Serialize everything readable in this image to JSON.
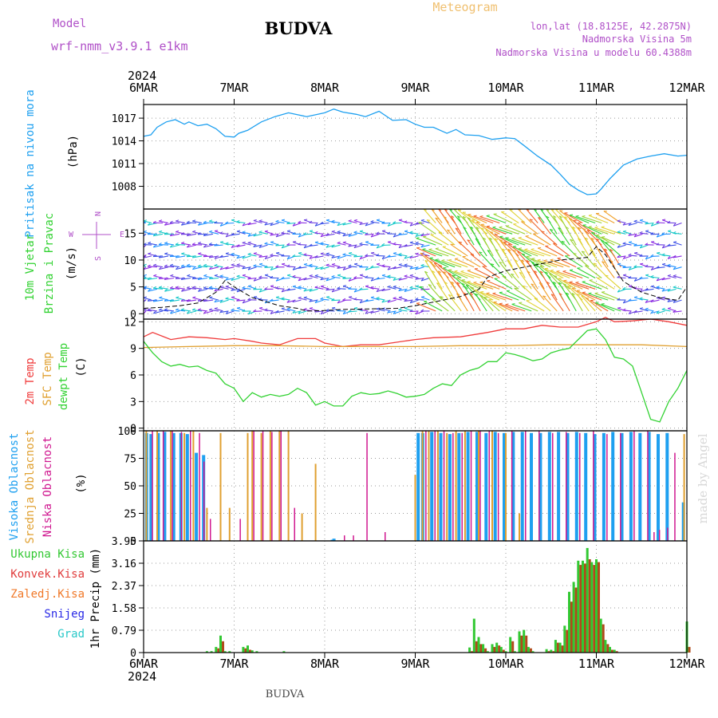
{
  "header": {
    "title": "BUDVA",
    "subtitle": "Meteogram",
    "model_label": "Model",
    "model_value": "wrf-nmm_v3.9.1 e1km",
    "location_line": "lon,lat (18.8125E, 42.2875N)",
    "elevation_line": "Nadmorska Visina 5m",
    "model_elevation_line": "Nadmorska Visina u modelu 60.4388m",
    "year_top": "2024",
    "year_bottom": "2024",
    "footer_title": "BUDVA",
    "watermark": "made by Angel"
  },
  "colors": {
    "pressure": "#1ea0f0",
    "temp2m": "#f03c3c",
    "sfc": "#e0a030",
    "dewpt": "#32d232",
    "high_cloud": "#1ea0f0",
    "mid_cloud": "#e0a030",
    "low_cloud": "#d01890",
    "precip_total": "#32c832",
    "precip_conv": "#e03c3c",
    "precip_frozen": "#f07828",
    "precip_snow": "#2828e6",
    "precip_hail": "#28c8c8",
    "wind_speed": "#000000"
  },
  "chart_data": [
    {
      "id": "pressure",
      "type": "line",
      "side_label": "Pritisak na nivou mora",
      "ylabel": "(hPa)",
      "ylim": [
        1005,
        1018.8
      ],
      "yticks": [
        1008,
        1011,
        1014,
        1017
      ],
      "x_days": [
        0,
        0.08,
        0.15,
        0.25,
        0.35,
        0.45,
        0.5,
        0.6,
        0.7,
        0.8,
        0.9,
        1.0,
        1.05,
        1.15,
        1.3,
        1.45,
        1.6,
        1.8,
        2.0,
        2.1,
        2.2,
        2.35,
        2.45,
        2.6,
        2.75,
        2.9,
        3.0,
        3.1,
        3.2,
        3.35,
        3.45,
        3.55,
        3.7,
        3.85,
        4.0,
        4.1,
        4.2,
        4.35,
        4.5,
        4.6,
        4.7,
        4.8,
        4.9,
        5.0,
        5.05,
        5.15,
        5.3,
        5.45,
        5.6,
        5.75,
        5.9,
        6.0
      ],
      "y_values": [
        1014.6,
        1014.8,
        1015.8,
        1016.5,
        1016.8,
        1016.2,
        1016.5,
        1016.0,
        1016.2,
        1015.6,
        1014.6,
        1014.5,
        1015.0,
        1015.4,
        1016.5,
        1017.2,
        1017.7,
        1017.2,
        1017.7,
        1018.2,
        1017.8,
        1017.5,
        1017.2,
        1017.9,
        1016.7,
        1016.8,
        1016.2,
        1015.8,
        1015.8,
        1015.0,
        1015.5,
        1014.8,
        1014.7,
        1014.2,
        1014.4,
        1014.3,
        1013.4,
        1012.0,
        1010.8,
        1009.6,
        1008.3,
        1007.5,
        1006.9,
        1007.0,
        1007.6,
        1009.0,
        1010.8,
        1011.6,
        1012.0,
        1012.3,
        1012.0,
        1012.1
      ],
      "xlim_days": [
        0,
        6
      ]
    },
    {
      "id": "wind",
      "type": "wind-barbs",
      "side_label_1": "10m Vjetar",
      "side_label_2": "Brzina i Pravac",
      "ylabel": "(m/s)",
      "compass_n": "N",
      "compass_w": "W",
      "compass_e": "E",
      "compass_s": "S",
      "ylim": [
        -1,
        19.5
      ],
      "yticks": [
        0,
        5,
        10,
        15
      ],
      "speed_x_days": [
        0,
        0.2,
        0.4,
        0.6,
        0.8,
        0.9,
        1.0,
        1.2,
        1.5,
        1.7,
        1.8,
        2.0,
        2.2,
        2.5,
        2.8,
        3.0,
        3.3,
        3.5,
        3.7,
        3.8,
        4.0,
        4.3,
        4.6,
        4.9,
        5.0,
        5.1,
        5.2,
        5.3,
        5.5,
        5.7,
        5.9,
        6.0
      ],
      "speed_values": [
        1.0,
        1.2,
        1.5,
        2.0,
        4.0,
        6.2,
        5.0,
        3.0,
        1.5,
        1.0,
        0.5,
        0.6,
        0.8,
        0.9,
        1.0,
        1.5,
        2.5,
        3.2,
        4.5,
        6.8,
        8.0,
        9.0,
        10.0,
        10.5,
        12.5,
        11.0,
        8.5,
        6.0,
        4.0,
        3.0,
        2.5,
        5.0
      ],
      "segments": [
        {
          "from": 0,
          "to": 0.85,
          "regime": "westerly-calm"
        },
        {
          "from": 0.85,
          "to": 3.2,
          "regime": "variable-light"
        },
        {
          "from": 3.2,
          "to": 5.3,
          "regime": "southeasterly-strong"
        },
        {
          "from": 5.3,
          "to": 6.0,
          "regime": "variable-light"
        }
      ],
      "xlim_days": [
        0,
        6
      ]
    },
    {
      "id": "temperature",
      "type": "line",
      "side_label_2m": "2m Temp",
      "side_label_sfc": "SFC Temp",
      "side_label_dew": "dewpt Temp",
      "ylabel": "(C)",
      "ylim": [
        -0.3,
        12.3
      ],
      "yticks": [
        0,
        3,
        6,
        9,
        12
      ],
      "series": [
        {
          "name": "2m Temp",
          "color_key": "temp2m",
          "x": [
            0,
            0.1,
            0.2,
            0.3,
            0.5,
            0.7,
            0.9,
            1.0,
            1.2,
            1.3,
            1.5,
            1.7,
            1.9,
            2.0,
            2.2,
            2.4,
            2.6,
            2.8,
            3.0,
            3.2,
            3.5,
            3.8,
            4.0,
            4.2,
            4.4,
            4.6,
            4.8,
            5.0,
            5.1,
            5.2,
            5.4,
            5.6,
            5.8,
            6.0
          ],
          "y": [
            10.3,
            10.8,
            10.4,
            10.0,
            10.3,
            10.2,
            10.0,
            10.1,
            9.8,
            9.6,
            9.4,
            10.1,
            10.1,
            9.6,
            9.2,
            9.4,
            9.4,
            9.7,
            10.0,
            10.2,
            10.3,
            10.8,
            11.2,
            11.2,
            11.6,
            11.4,
            11.4,
            12.0,
            12.5,
            12.0,
            12.1,
            12.3,
            12.0,
            11.6
          ]
        },
        {
          "name": "SFC Temp",
          "color_key": "sfc",
          "x": [
            0,
            0.5,
            1.0,
            1.5,
            2.0,
            2.5,
            3.0,
            3.5,
            4.0,
            4.5,
            5.0,
            5.5,
            6.0
          ],
          "y": [
            9.1,
            9.2,
            9.3,
            9.3,
            9.2,
            9.2,
            9.2,
            9.3,
            9.3,
            9.4,
            9.4,
            9.4,
            9.2
          ]
        },
        {
          "name": "dewpt Temp",
          "color_key": "dewpt",
          "x": [
            0,
            0.1,
            0.2,
            0.3,
            0.4,
            0.5,
            0.6,
            0.7,
            0.8,
            0.9,
            1.0,
            1.1,
            1.2,
            1.3,
            1.4,
            1.5,
            1.6,
            1.7,
            1.8,
            1.9,
            2.0,
            2.1,
            2.2,
            2.3,
            2.4,
            2.5,
            2.6,
            2.7,
            2.8,
            2.9,
            3.0,
            3.1,
            3.2,
            3.3,
            3.4,
            3.5,
            3.6,
            3.7,
            3.8,
            3.9,
            4.0,
            4.1,
            4.2,
            4.3,
            4.4,
            4.5,
            4.6,
            4.7,
            4.8,
            4.9,
            5.0,
            5.1,
            5.2,
            5.3,
            5.4,
            5.5,
            5.6,
            5.7,
            5.8,
            5.9,
            6.0
          ],
          "y": [
            9.8,
            8.5,
            7.5,
            7.0,
            7.2,
            6.9,
            7.0,
            6.5,
            6.2,
            5.0,
            4.5,
            3.0,
            4.0,
            3.5,
            3.8,
            3.6,
            3.8,
            4.5,
            4.0,
            2.6,
            3.0,
            2.5,
            2.5,
            3.6,
            4.0,
            3.8,
            3.9,
            4.2,
            3.9,
            3.5,
            3.6,
            3.8,
            4.5,
            5.0,
            4.8,
            6.0,
            6.5,
            6.8,
            7.5,
            7.5,
            8.5,
            8.3,
            8.0,
            7.6,
            7.8,
            8.5,
            8.8,
            9.0,
            10.0,
            11.0,
            11.2,
            10.0,
            8.0,
            7.8,
            7.0,
            4.0,
            1.0,
            0.7,
            3.0,
            4.5,
            6.5
          ]
        }
      ],
      "xlim_days": [
        0,
        6
      ]
    },
    {
      "id": "clouds",
      "type": "bar",
      "side_label_high": "Visoka Oblacnost",
      "side_label_mid": "Srednja Oblacnost",
      "side_label_low": "Niska Oblacnost",
      "ylabel": "(%)",
      "ylim": [
        0,
        100
      ],
      "yticks": [
        0,
        25,
        50,
        75,
        100
      ],
      "series": [
        {
          "name": "Visoka Oblacnost",
          "color_key": "high_cloud",
          "x": [
            0.05,
            0.1,
            0.18,
            0.25,
            0.35,
            0.43,
            0.5,
            0.6,
            0.68,
            2.1,
            2.12,
            3.05,
            3.1,
            3.2,
            3.3,
            3.4,
            3.5,
            3.6,
            3.7,
            3.8,
            3.9,
            4.0,
            4.1,
            4.2,
            4.3,
            4.4,
            4.5,
            4.6,
            4.7,
            4.8,
            4.9,
            5.0,
            5.1,
            5.2,
            5.3,
            5.4,
            5.5,
            5.6,
            5.7,
            5.8,
            5.98
          ],
          "y": [
            98,
            97,
            98,
            99,
            98,
            98,
            97,
            80,
            78,
            1,
            2,
            98,
            98,
            99,
            98,
            97,
            98,
            99,
            99,
            98,
            99,
            98,
            99,
            99,
            98,
            98,
            99,
            99,
            98,
            99,
            98,
            97,
            98,
            99,
            98,
            99,
            98,
            99,
            97,
            98,
            35
          ]
        },
        {
          "name": "Srednja Oblacnost",
          "color_key": "mid_cloud",
          "x": [
            0.03,
            0.15,
            0.3,
            0.45,
            0.55,
            0.7,
            0.85,
            0.95,
            1.15,
            1.2,
            1.3,
            1.4,
            1.5,
            1.6,
            1.75,
            1.9,
            3.0,
            3.08,
            3.15,
            3.25,
            3.35,
            3.45,
            3.55,
            3.7,
            3.85,
            4.0,
            4.15,
            5.97
          ],
          "y": [
            100,
            100,
            100,
            98,
            100,
            30,
            98,
            30,
            98,
            100,
            98,
            100,
            100,
            100,
            25,
            70,
            60,
            100,
            100,
            100,
            98,
            100,
            100,
            100,
            100,
            98,
            25,
            97
          ]
        },
        {
          "name": "Niska Oblacnost",
          "color_key": "low_cloud",
          "x": [
            0.08,
            0.2,
            0.3,
            0.4,
            0.5,
            0.6,
            0.65,
            0.72,
            1.05,
            1.2,
            1.3,
            1.4,
            1.5,
            1.65,
            2.2,
            2.3,
            2.45,
            2.65,
            3.1,
            3.2,
            3.3,
            3.4,
            3.5,
            3.6,
            3.7,
            3.8,
            3.9,
            4.05,
            4.2,
            4.35,
            4.5,
            4.65,
            4.8,
            4.95,
            5.1,
            5.25,
            5.4,
            5.55,
            5.62,
            5.68,
            5.77,
            5.85
          ],
          "y": [
            100,
            100,
            100,
            99,
            100,
            98,
            72,
            20,
            20,
            100,
            100,
            99,
            100,
            30,
            5,
            5,
            98,
            8,
            100,
            100,
            100,
            98,
            98,
            100,
            100,
            100,
            98,
            100,
            100,
            100,
            98,
            99,
            98,
            100,
            97,
            98,
            100,
            100,
            8,
            10,
            12,
            80
          ]
        }
      ],
      "xlim_days": [
        0,
        6
      ]
    },
    {
      "id": "precip",
      "type": "bar",
      "legend_total": "Ukupna Kisa",
      "legend_conv": "Konvek.Kisa",
      "legend_frozen": "Zaledj.Kisa",
      "legend_snow": "Snijeg",
      "legend_hail": "Grad",
      "ylabel": "1hr Precip (mm)",
      "ylim": [
        0,
        3.95
      ],
      "yticks": [
        "0",
        "0.79",
        "1.58",
        "2.37",
        "3.16",
        "3.95"
      ],
      "x_days": [
        0.7,
        0.75,
        0.8,
        0.85,
        0.9,
        0.95,
        1.1,
        1.15,
        1.2,
        1.25,
        1.55,
        3.6,
        3.65,
        3.7,
        3.75,
        3.8,
        3.85,
        3.9,
        3.95,
        4.0,
        4.05,
        4.1,
        4.15,
        4.2,
        4.25,
        4.3,
        4.35,
        4.4,
        4.45,
        4.5,
        4.55,
        4.6,
        4.65,
        4.7,
        4.75,
        4.8,
        4.85,
        4.9,
        4.95,
        5.0,
        5.05,
        5.1,
        5.15,
        5.2,
        5.25,
        5.3,
        5.35,
        5.4,
        5.45,
        5.5,
        5.55,
        5.6,
        5.65,
        5.7,
        5.75,
        5.8,
        5.85,
        5.9,
        5.95,
        6.0
      ],
      "total": [
        0.05,
        0.05,
        0.2,
        0.6,
        0.05,
        0.05,
        0.2,
        0.25,
        0.08,
        0.05,
        0.05,
        0.18,
        1.2,
        0.55,
        0.3,
        0.05,
        0.3,
        0.35,
        0.2,
        0.05,
        0.55,
        0.05,
        0.75,
        0.8,
        0.2,
        0.05,
        0,
        0,
        0.12,
        0.1,
        0.45,
        0.35,
        0.95,
        2.15,
        2.5,
        3.25,
        3.25,
        3.7,
        3.2,
        3.3,
        1.2,
        0.45,
        0.2,
        0.1,
        0,
        0,
        0,
        0,
        0,
        0,
        0,
        0,
        0,
        0,
        0,
        0,
        0,
        0,
        0,
        1.1
      ],
      "convective": [
        0,
        0,
        0.15,
        0.4,
        0,
        0,
        0.15,
        0.1,
        0,
        0,
        0,
        0.05,
        0.4,
        0.3,
        0.15,
        0,
        0.2,
        0.25,
        0.1,
        0,
        0.4,
        0,
        0.6,
        0.6,
        0.15,
        0,
        0,
        0,
        0.05,
        0.05,
        0.35,
        0.25,
        0.8,
        1.8,
        2.3,
        3.1,
        3.15,
        3.3,
        3.1,
        3.2,
        1.0,
        0.3,
        0.1,
        0.05,
        0,
        0,
        0,
        0,
        0,
        0,
        0,
        0,
        0,
        0,
        0,
        0,
        0,
        0,
        0,
        0.2
      ],
      "xlim_days": [
        0,
        6
      ]
    }
  ],
  "x_axis": {
    "tick_labels": [
      "6MAR",
      "7MAR",
      "8MAR",
      "9MAR",
      "10MAR",
      "11MAR",
      "12MAR"
    ]
  }
}
